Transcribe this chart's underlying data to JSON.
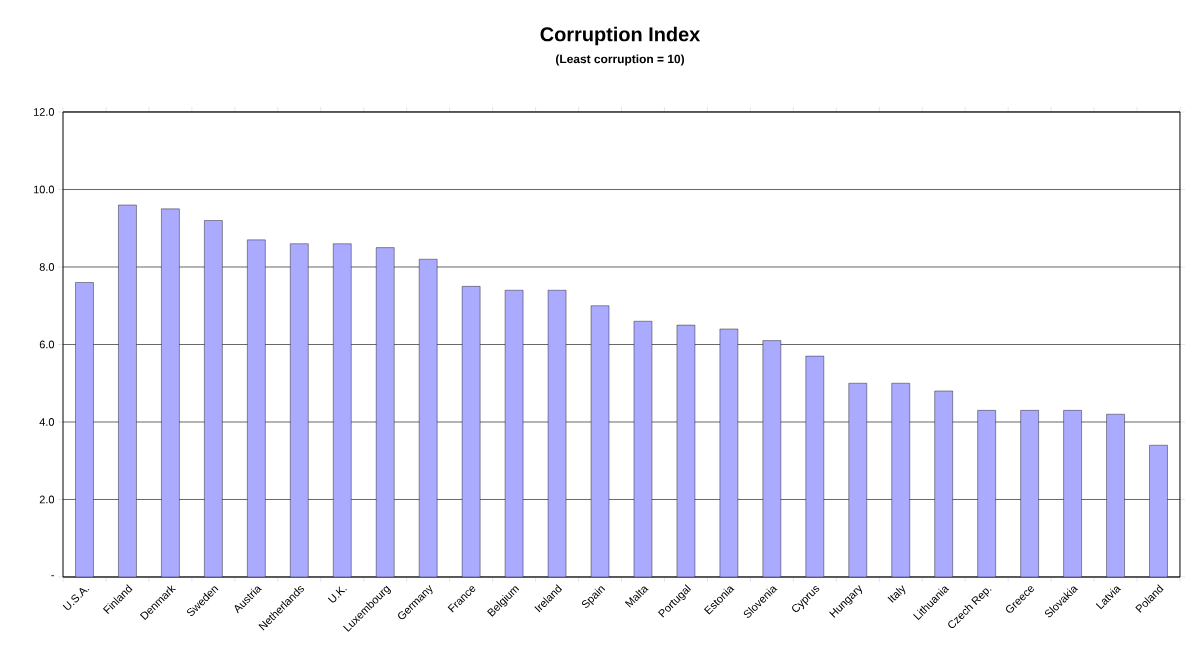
{
  "chart_data": {
    "type": "bar",
    "title": "Corruption Index",
    "subtitle": "(Least corruption = 10)",
    "categories": [
      "U.S.A.",
      "Finland",
      "Denmark",
      "Sweden",
      "Austria",
      "Netherlands",
      "U.K.",
      "Luxembourg",
      "Germany",
      "France",
      "Belgium",
      "Ireland",
      "Spain",
      "Malta",
      "Portugal",
      "Estonia",
      "Slovenia",
      "Cyprus",
      "Hungary",
      "Italy",
      "Lithuania",
      "Czech Rep.",
      "Greece",
      "Slovakia",
      "Latvia",
      "Poland"
    ],
    "values": [
      7.6,
      9.6,
      9.5,
      9.2,
      8.7,
      8.6,
      8.6,
      8.5,
      8.2,
      7.5,
      7.4,
      7.4,
      7.0,
      6.6,
      6.5,
      6.4,
      6.1,
      5.7,
      5.0,
      5.0,
      4.8,
      4.3,
      4.3,
      4.3,
      4.2,
      3.4
    ],
    "color": "#aaaaff",
    "ylim": [
      0,
      12
    ],
    "yticks": [
      {
        "value": 0,
        "label": "-"
      },
      {
        "value": 2,
        "label": "2.0"
      },
      {
        "value": 4,
        "label": "4.0"
      },
      {
        "value": 6,
        "label": "6.0"
      },
      {
        "value": 8,
        "label": "8.0"
      },
      {
        "value": 10,
        "label": "10.0"
      },
      {
        "value": 12,
        "label": "12.0"
      }
    ],
    "grid": "y"
  }
}
